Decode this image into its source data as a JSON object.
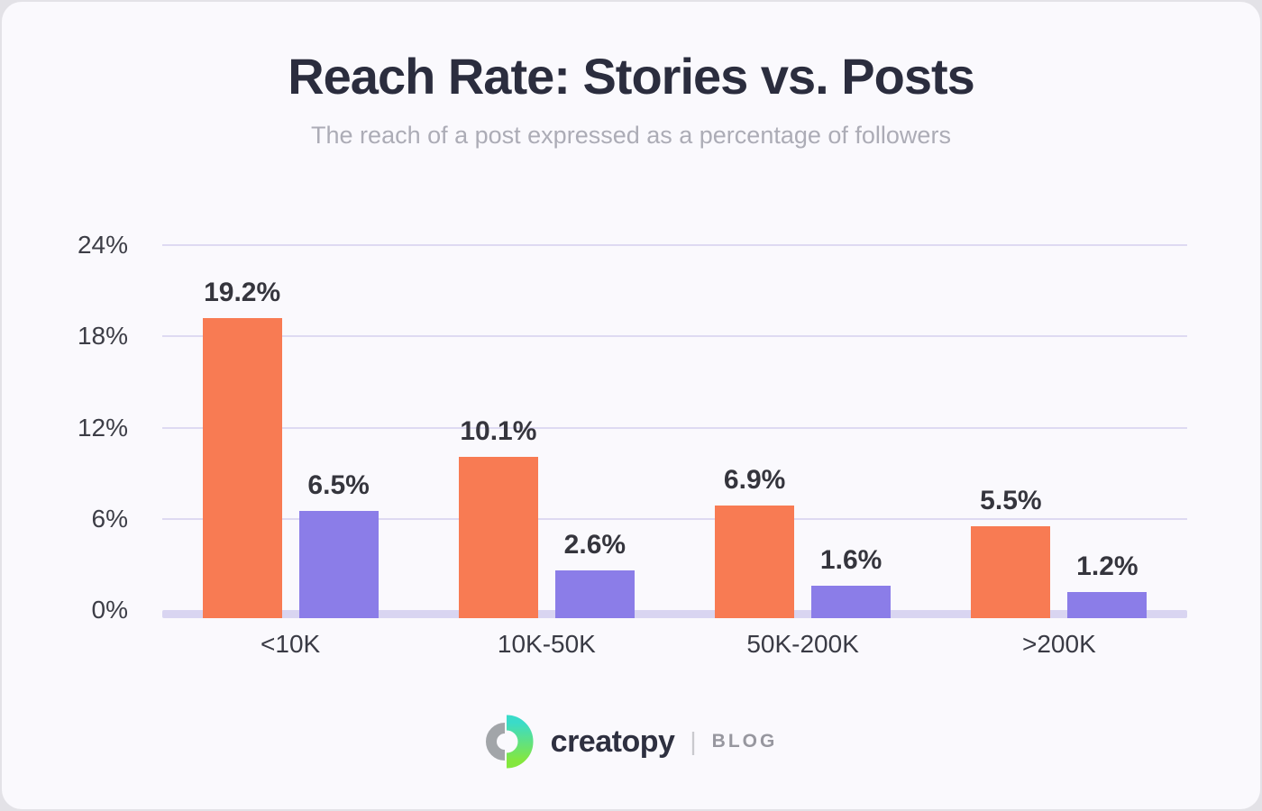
{
  "page": {
    "title": "Reach Rate: Stories vs. Posts",
    "subtitle": "The reach of a post expressed as a percentage of followers"
  },
  "chart_data": {
    "type": "bar",
    "title": "Reach Rate: Stories vs. Posts",
    "subtitle": "The reach of a post expressed as a percentage of followers",
    "categories": [
      "<10K",
      "10K-50K",
      "50K-200K",
      ">200K"
    ],
    "series": [
      {
        "name": "orange",
        "color": "#f87b53",
        "values": [
          19.2,
          10.1,
          6.9,
          5.5
        ],
        "labels": [
          "19.2%",
          "10.1%",
          "6.9%",
          "5.5%"
        ]
      },
      {
        "name": "purple",
        "color": "#8b7de8",
        "values": [
          6.5,
          2.6,
          1.6,
          1.2
        ],
        "labels": [
          "6.5%",
          "2.6%",
          "1.6%",
          "1.2%"
        ]
      }
    ],
    "xlabel": "",
    "ylabel": "",
    "ylim": [
      0,
      24
    ],
    "yticks": [
      {
        "value": 24,
        "label": "24%"
      },
      {
        "value": 18,
        "label": "18%"
      },
      {
        "value": 12,
        "label": "12%"
      },
      {
        "value": 6,
        "label": "6%"
      },
      {
        "value": 0,
        "label": "0%"
      }
    ],
    "grid": "horizontal",
    "legend": "none",
    "value_labels": "above-bars"
  },
  "footer": {
    "brand": "creatopy",
    "divider": "|",
    "blog_label": "BLOG"
  },
  "colors": {
    "outer_bg": "#e3e2e7",
    "card_bg": "#faf9fd",
    "title": "#2b2d3e",
    "subtitle": "#acacb6",
    "grid_line": "#dedaf2",
    "baseline": "#d9d5f1",
    "bar_orange": "#f87b53",
    "bar_purple": "#8b7de8",
    "tick_label": "#3c3d46",
    "value_label": "#35353d",
    "category_label": "#393a44",
    "brand_text": "#2e3040",
    "blog_text": "#97979f",
    "logo_gradient_top": "#3adbc9",
    "logo_gradient_bottom": "#84e73e",
    "logo_gray": "#a2a5a9"
  }
}
